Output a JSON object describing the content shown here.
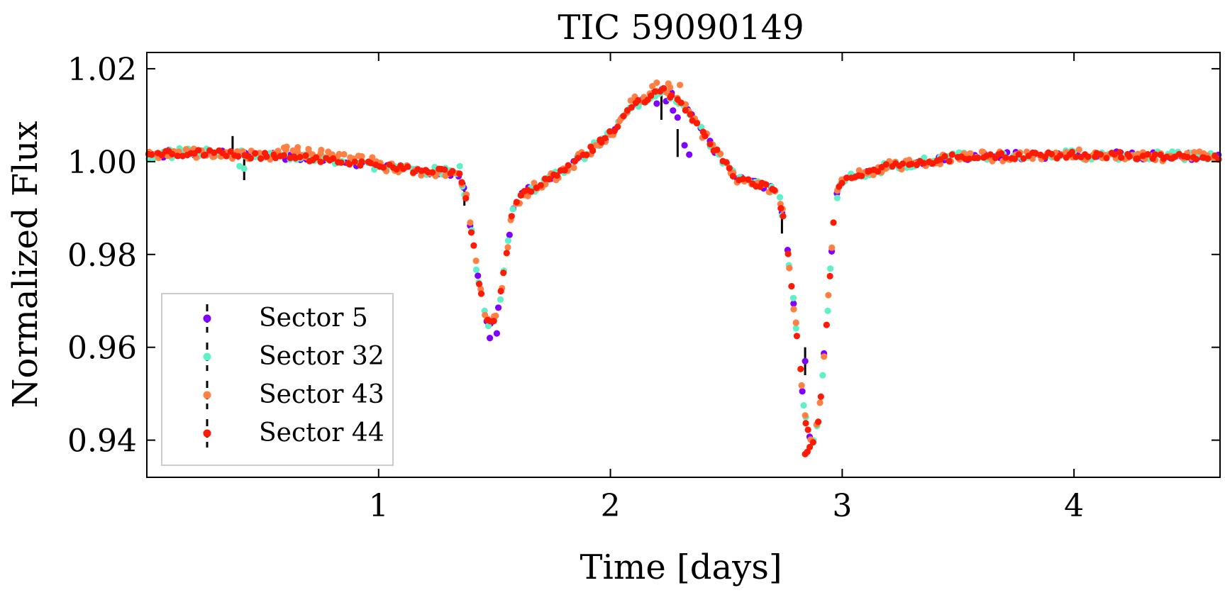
{
  "colors": {
    "sector5": "#7f00ff",
    "sector32": "#5ff0c8",
    "sector43": "#ff7f44",
    "sector44": "#ff1a05",
    "errorbar": "#000000",
    "axis": "#000000",
    "legend_border": "#cccccc"
  },
  "chart_data": {
    "type": "scatter",
    "title": "TIC 59090149",
    "xlabel": "Time [days]",
    "ylabel": "Normalized Flux",
    "xlim": [
      0.0,
      4.63
    ],
    "ylim": [
      0.932,
      1.0235
    ],
    "xticks": [
      1,
      2,
      3,
      4
    ],
    "xtick_labels": [
      "1",
      "2",
      "3",
      "4"
    ],
    "yticks": [
      0.94,
      0.96,
      0.98,
      1.0,
      1.02
    ],
    "ytick_labels": [
      "0.94",
      "0.96",
      "0.98",
      "1.00",
      "1.02"
    ],
    "grid": false,
    "legend_position": "lower-left",
    "model_curve": {
      "description": "light-curve shape used to generate series points (phase in days, normalized flux)",
      "x": [
        0.0,
        0.2,
        0.4,
        0.6,
        0.8,
        1.0,
        1.2,
        1.35,
        1.38,
        1.42,
        1.46,
        1.49,
        1.52,
        1.55,
        1.58,
        1.62,
        1.8,
        2.0,
        2.1,
        2.22,
        2.3,
        2.4,
        2.55,
        2.72,
        2.75,
        2.8,
        2.84,
        2.87,
        2.9,
        2.94,
        2.97,
        3.0,
        3.2,
        3.5,
        4.0,
        4.63
      ],
      "y": [
        1.0015,
        1.002,
        1.0015,
        1.001,
        1.0005,
        0.999,
        0.998,
        0.9975,
        0.992,
        0.978,
        0.966,
        0.965,
        0.969,
        0.98,
        0.99,
        0.993,
        0.998,
        1.006,
        1.012,
        1.0155,
        1.013,
        1.006,
        0.996,
        0.994,
        0.987,
        0.965,
        0.945,
        0.938,
        0.945,
        0.97,
        0.992,
        0.996,
        0.999,
        1.001,
        1.0015,
        1.001
      ]
    },
    "series": [
      {
        "name": "Sector 5",
        "color_key": "sector5",
        "x_range": [
          0.0,
          4.63
        ],
        "n_points": 150,
        "seed": 5,
        "noise": 0.0008,
        "x": [
          1.48,
          1.51,
          2.2,
          2.24,
          2.27,
          2.29,
          2.32,
          2.34,
          2.84
        ],
        "y": [
          0.962,
          0.963,
          1.0125,
          1.013,
          1.011,
          1.0095,
          1.0035,
          1.0015,
          0.957
        ],
        "errorbars": [
          {
            "x": 2.84,
            "y": 0.957,
            "err": 0.003
          },
          {
            "x": 2.22,
            "y": 1.012,
            "err": 0.003
          },
          {
            "x": 2.29,
            "y": 1.004,
            "err": 0.003
          }
        ]
      },
      {
        "name": "Sector 32",
        "color_key": "sector32",
        "x_range": [
          0.0,
          4.63
        ],
        "n_points": 220,
        "seed": 32,
        "noise": 0.001,
        "x": [
          0.4,
          0.42,
          1.35
        ],
        "y": [
          0.999,
          0.9985,
          0.999
        ],
        "errorbars": [
          {
            "x": 0.42,
            "y": 0.9985,
            "err": 0.0025
          },
          {
            "x": 0.37,
            "y": 1.003,
            "err": 0.0025
          }
        ]
      },
      {
        "name": "Sector 43",
        "color_key": "sector43",
        "x_range": [
          0.0,
          4.63
        ],
        "n_points": 240,
        "seed": 43,
        "noise": 0.0011,
        "x": [
          0.6,
          0.65,
          0.7,
          0.75,
          0.8,
          2.2,
          2.25,
          2.3
        ],
        "y": [
          1.0025,
          1.0022,
          1.002,
          1.0018,
          1.0015,
          1.017,
          1.0168,
          1.0165
        ],
        "errorbars": []
      },
      {
        "name": "Sector 44",
        "color_key": "sector44",
        "x_range": [
          0.0,
          4.63
        ],
        "n_points": 260,
        "seed": 44,
        "noise": 0.0007,
        "x": [
          2.84,
          2.85,
          2.86
        ],
        "y": [
          0.937,
          0.9375,
          0.9385
        ],
        "errorbars": [
          {
            "x": 1.37,
            "y": 0.993,
            "err": 0.0025
          },
          {
            "x": 2.74,
            "y": 0.987,
            "err": 0.0025
          }
        ]
      }
    ]
  }
}
